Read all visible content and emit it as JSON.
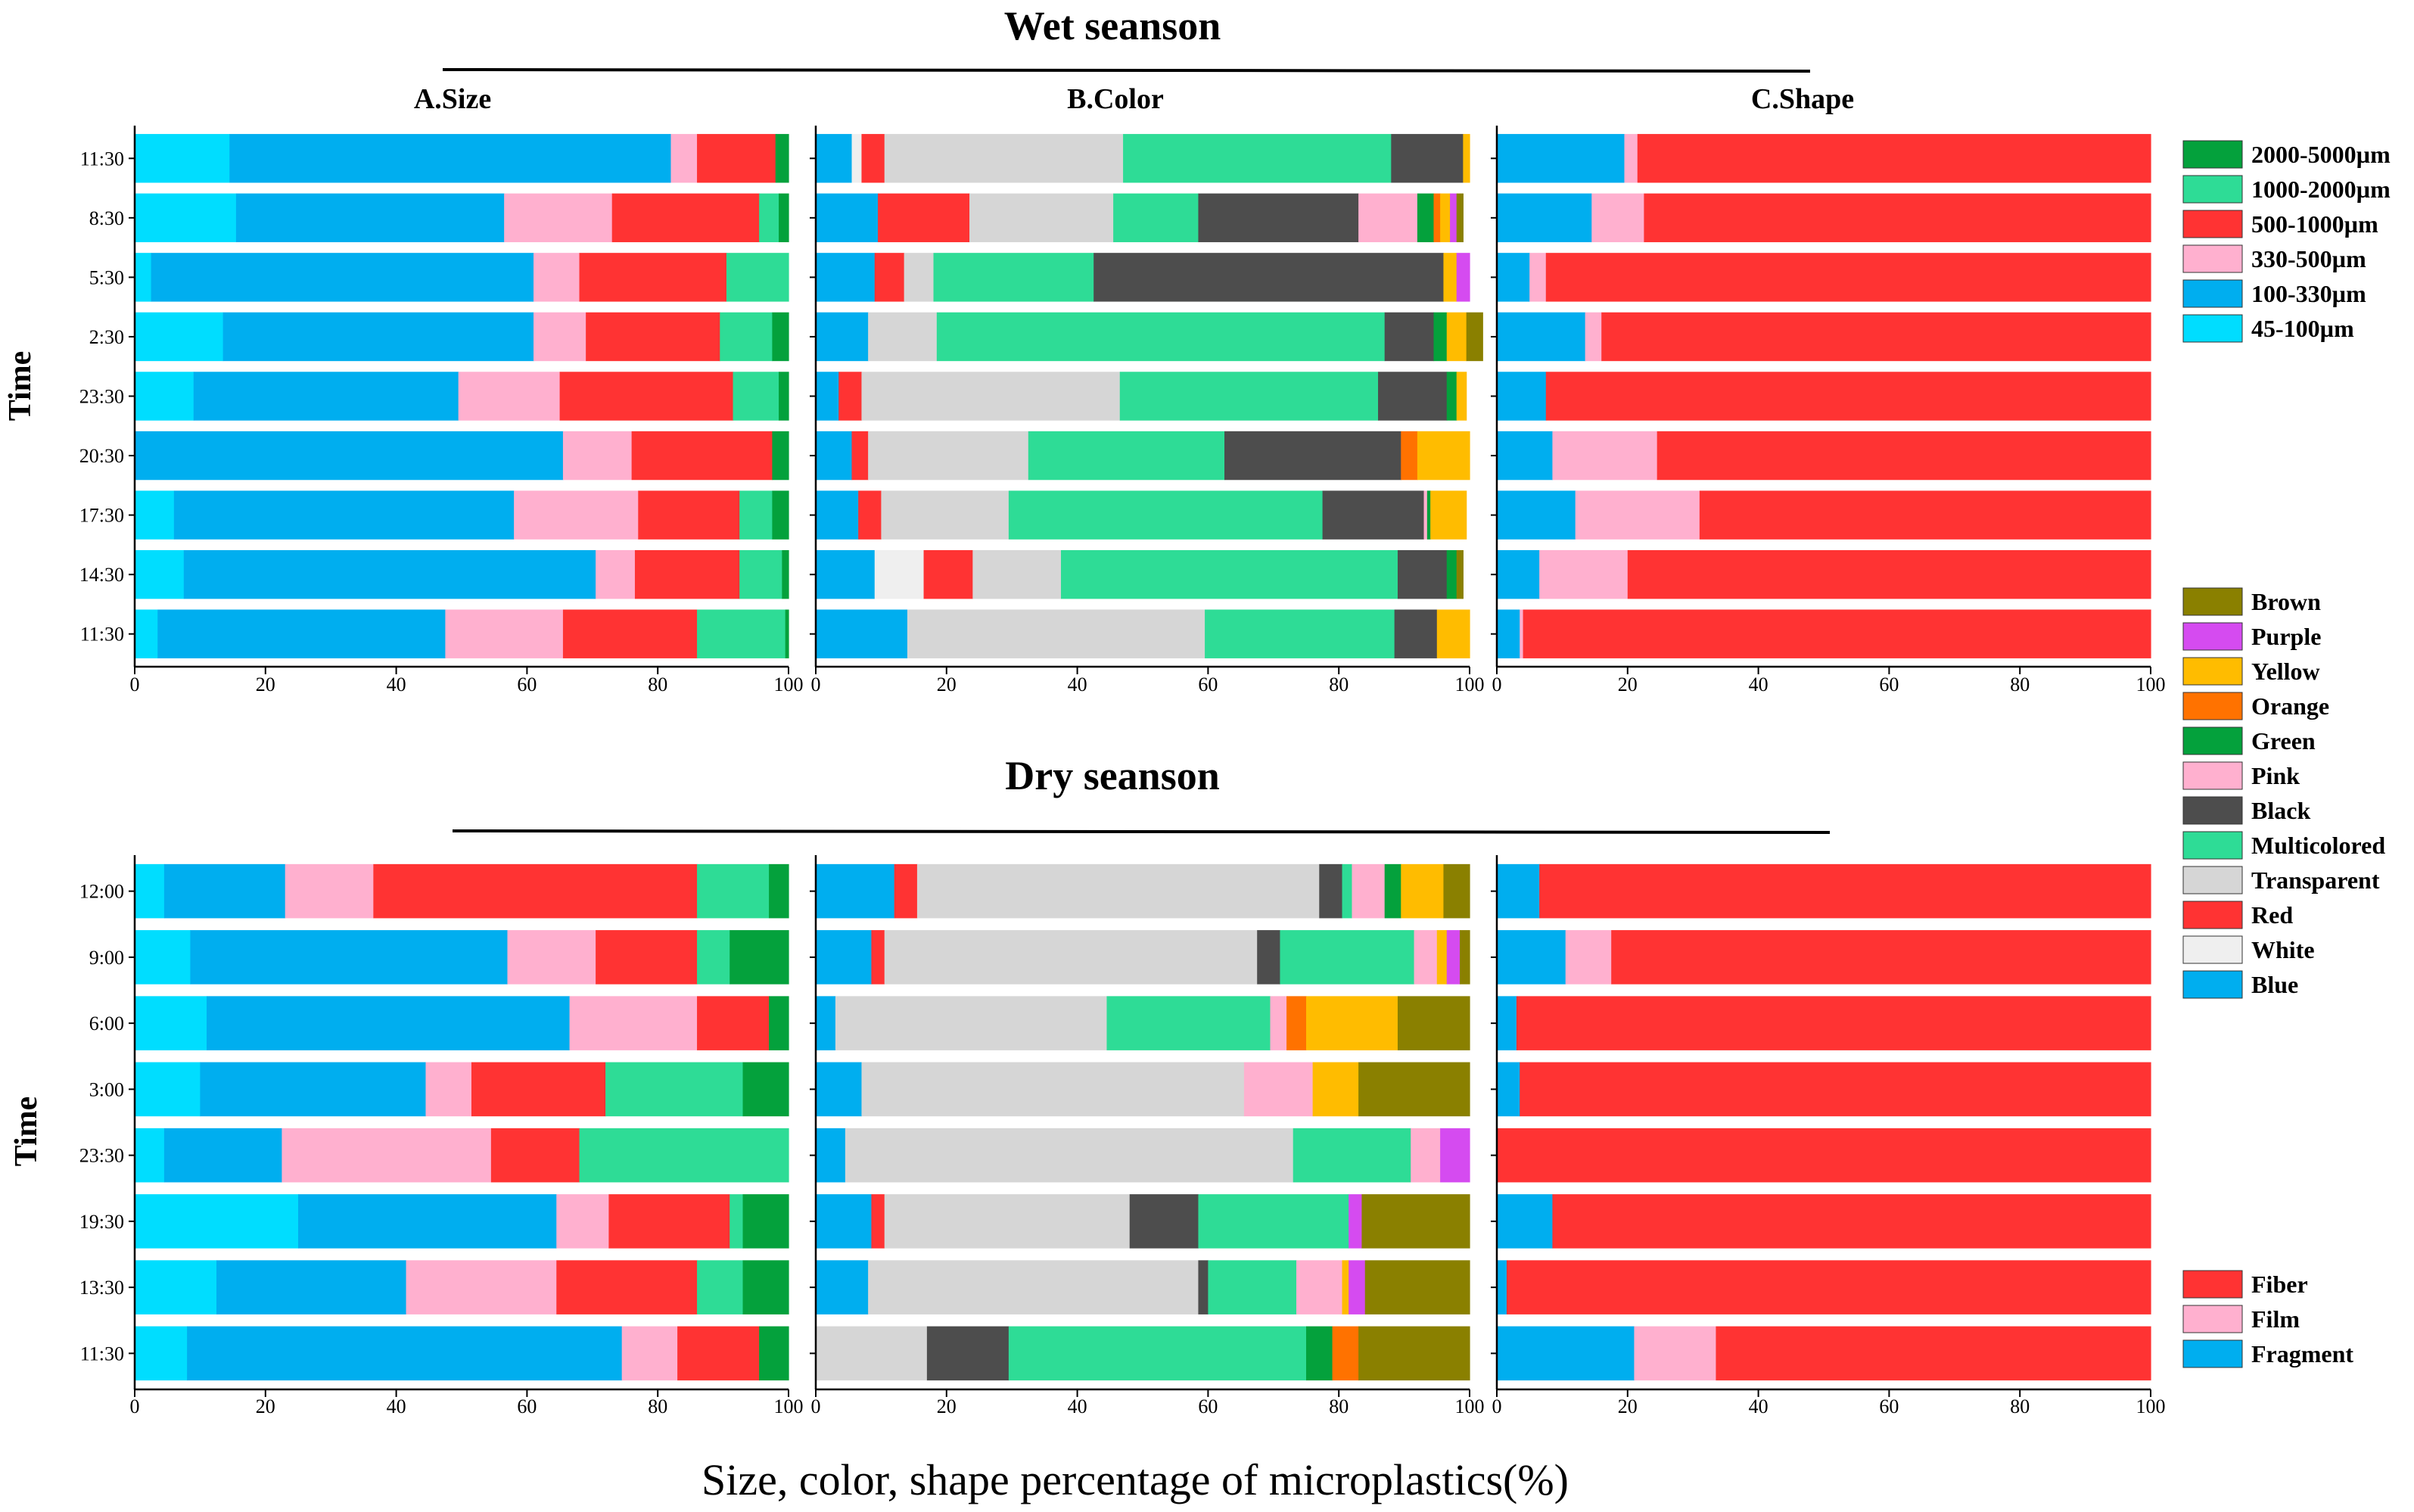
{
  "palette": {
    "2000-5000µm": "#04A13C",
    "1000-2000µm": "#2EDC96",
    "500-1000µm": "#FF3333",
    "330-500µm": "#FFB0CF",
    "100-330µm": "#00AEEF",
    "45-100µm": "#00DDFF",
    "Brown": "#8A8000",
    "Purple": "#D54BF0",
    "Yellow": "#FFBC00",
    "Orange": "#FF7200",
    "Green": "#04A13C",
    "Pink": "#FFB0CF",
    "Black": "#4D4D4D",
    "Multicolored": "#2EDC96",
    "Transparent": "#D6D6D6",
    "Red": "#FF3333",
    "White": "#EFEFEF",
    "Blue": "#00AEEF",
    "Fiber": "#FF3333",
    "Film": "#FFB0CF",
    "Fragment": "#00AEEF"
  },
  "global": {
    "xlabel": "Size, color, shape percentage of microplastics(%)",
    "ylabel": "Time"
  },
  "legends": {
    "size": [
      "2000-5000µm",
      "1000-2000µm",
      "500-1000µm",
      "330-500µm",
      "100-330µm",
      "45-100µm"
    ],
    "color": [
      "Brown",
      "Purple",
      "Yellow",
      "Orange",
      "Green",
      "Pink",
      "Black",
      "Multicolored",
      "Transparent",
      "Red",
      "White",
      "Blue"
    ],
    "shape": [
      "Fiber",
      "Film",
      "Fragment"
    ]
  },
  "chart_data": [
    {
      "type": "bar",
      "orientation": "horizontal-stacked",
      "season": "Wet seanson",
      "title": "A.Size",
      "ylabel": "Time",
      "xlim": [
        0,
        100
      ],
      "xticks": [
        "0",
        "20",
        "40",
        "60",
        "80",
        "100"
      ],
      "categories": [
        "11:30",
        "8:30",
        "5:30",
        "2:30",
        "23:30",
        "20:30",
        "17:30",
        "14:30",
        "11:30"
      ],
      "series": [
        {
          "name": "45-100µm",
          "values": [
            14.5,
            15.5,
            2.5,
            13.5,
            9,
            0,
            6,
            7.5,
            3.5
          ]
        },
        {
          "name": "100-330µm",
          "values": [
            67.5,
            41,
            58.5,
            47.5,
            40.5,
            65.5,
            52,
            63,
            44
          ]
        },
        {
          "name": "330-500µm",
          "values": [
            4,
            16.5,
            7,
            8,
            15.5,
            10.5,
            19,
            6,
            18
          ]
        },
        {
          "name": "500-1000µm",
          "values": [
            12,
            22.5,
            22.5,
            20.5,
            26.5,
            21.5,
            15.5,
            16,
            20.5
          ]
        },
        {
          "name": "1000-2000µm",
          "values": [
            0,
            3,
            9.5,
            8,
            7,
            0,
            5,
            6.5,
            13.5
          ]
        },
        {
          "name": "2000-5000µm",
          "values": [
            2,
            1.5,
            0,
            2.5,
            1.5,
            2.5,
            2.5,
            1,
            0.5
          ]
        }
      ]
    },
    {
      "type": "bar",
      "orientation": "horizontal-stacked",
      "season": "Wet seanson",
      "title": "B.Color",
      "xlim": [
        0,
        100
      ],
      "xticks": [
        "0",
        "20",
        "40",
        "60",
        "80",
        "100"
      ],
      "categories": [
        "11:30",
        "8:30",
        "5:30",
        "2:30",
        "23:30",
        "20:30",
        "17:30",
        "14:30",
        "11:30"
      ],
      "series": [
        {
          "name": "Blue",
          "values": [
            5.5,
            9.5,
            9,
            8,
            3.5,
            5.5,
            6.5,
            9,
            14
          ]
        },
        {
          "name": "White",
          "values": [
            1.5,
            0,
            0,
            0,
            0,
            0,
            0,
            7.5,
            0
          ]
        },
        {
          "name": "Red",
          "values": [
            3.5,
            14,
            4.5,
            0,
            3.5,
            2.5,
            3.5,
            7.5,
            0
          ]
        },
        {
          "name": "Transparent",
          "values": [
            36.5,
            22,
            4.5,
            10.5,
            39.5,
            24.5,
            19.5,
            13.5,
            45.5
          ]
        },
        {
          "name": "Multicolored",
          "values": [
            41,
            13,
            24.5,
            68.5,
            39.5,
            30,
            48,
            51.5,
            29
          ]
        },
        {
          "name": "Black",
          "values": [
            11,
            24.5,
            53.5,
            7.5,
            10.5,
            27,
            15.5,
            7.5,
            6.5
          ]
        },
        {
          "name": "Pink",
          "values": [
            0,
            9,
            0,
            0,
            0,
            0,
            0.5,
            0,
            0
          ]
        },
        {
          "name": "Green",
          "values": [
            0,
            2.5,
            0,
            2,
            1.5,
            0,
            0.5,
            1.5,
            0
          ]
        },
        {
          "name": "Orange",
          "values": [
            0,
            1,
            0,
            0,
            0,
            2.5,
            0,
            0,
            0
          ]
        },
        {
          "name": "Yellow",
          "values": [
            1,
            1.5,
            2,
            3,
            1.5,
            8,
            5.5,
            0,
            5
          ]
        },
        {
          "name": "Purple",
          "values": [
            0,
            1,
            2,
            0,
            0,
            0,
            0,
            0,
            0
          ]
        },
        {
          "name": "Brown",
          "values": [
            0,
            1,
            0,
            2.5,
            0,
            0,
            0,
            1,
            0
          ]
        }
      ]
    },
    {
      "type": "bar",
      "orientation": "horizontal-stacked",
      "season": "Wet seanson",
      "title": "C.Shape",
      "xlim": [
        0,
        100
      ],
      "xticks": [
        "0",
        "20",
        "40",
        "60",
        "80",
        "100"
      ],
      "categories": [
        "11:30",
        "8:30",
        "5:30",
        "2:30",
        "23:30",
        "20:30",
        "17:30",
        "14:30",
        "11:30"
      ],
      "series": [
        {
          "name": "Fragment",
          "values": [
            19.5,
            14.5,
            5,
            13.5,
            7.5,
            8.5,
            12,
            6.5,
            3.5
          ]
        },
        {
          "name": "Film",
          "values": [
            2,
            8,
            2.5,
            2.5,
            0,
            16,
            19,
            13.5,
            0.5
          ]
        },
        {
          "name": "Fiber",
          "values": [
            78.5,
            77.5,
            92.5,
            84,
            92.5,
            75.5,
            69,
            80,
            96
          ]
        }
      ]
    },
    {
      "type": "bar",
      "orientation": "horizontal-stacked",
      "season": "Dry seanson",
      "title": "A.Size",
      "ylabel": "Time",
      "xlim": [
        0,
        100
      ],
      "xticks": [
        "0",
        "20",
        "40",
        "60",
        "80",
        "100"
      ],
      "categories": [
        "12:00",
        "9:00",
        "6:00",
        "3:00",
        "23:30",
        "19:30",
        "13:30",
        "11:30"
      ],
      "series": [
        {
          "name": "45-100µm",
          "values": [
            4.5,
            8.5,
            11,
            10,
            4.5,
            25,
            12.5,
            8
          ]
        },
        {
          "name": "100-330µm",
          "values": [
            18.5,
            48.5,
            55.5,
            34.5,
            18,
            39.5,
            29,
            66.5
          ]
        },
        {
          "name": "330-500µm",
          "values": [
            13.5,
            13.5,
            19.5,
            7,
            32,
            8,
            23,
            8.5
          ]
        },
        {
          "name": "500-1000µm",
          "values": [
            49.5,
            15.5,
            11,
            20.5,
            13.5,
            18.5,
            21.5,
            12.5
          ]
        },
        {
          "name": "1000-2000µm",
          "values": [
            11,
            5,
            0,
            21,
            32,
            2,
            7,
            0
          ]
        },
        {
          "name": "2000-5000µm",
          "values": [
            3,
            9,
            3,
            7,
            0,
            7,
            7,
            4.5
          ]
        }
      ]
    },
    {
      "type": "bar",
      "orientation": "horizontal-stacked",
      "season": "Dry seanson",
      "title": "B.Color",
      "xlim": [
        0,
        100
      ],
      "xticks": [
        "0",
        "20",
        "40",
        "60",
        "80",
        "100"
      ],
      "categories": [
        "12:00",
        "9:00",
        "6:00",
        "3:00",
        "23:30",
        "19:30",
        "13:30",
        "11:30"
      ],
      "series": [
        {
          "name": "Blue",
          "values": [
            12,
            8.5,
            3,
            7,
            4.5,
            8.5,
            8,
            0
          ]
        },
        {
          "name": "Red",
          "values": [
            3.5,
            2,
            0,
            0,
            0,
            2,
            0,
            0
          ]
        },
        {
          "name": "Transparent",
          "values": [
            61.5,
            57,
            41.5,
            58.5,
            68.5,
            37.5,
            50.5,
            17
          ]
        },
        {
          "name": "Black",
          "values": [
            3.5,
            3.5,
            0,
            0,
            0,
            10.5,
            1.5,
            12.5
          ]
        },
        {
          "name": "Multicolored",
          "values": [
            1.5,
            20.5,
            25,
            0,
            18,
            23,
            13.5,
            45.5
          ]
        },
        {
          "name": "Pink",
          "values": [
            5,
            3.5,
            2.5,
            10.5,
            4.5,
            0,
            7,
            0
          ]
        },
        {
          "name": "Green",
          "values": [
            2.5,
            0,
            0,
            0,
            0,
            0,
            0,
            4
          ]
        },
        {
          "name": "Orange",
          "values": [
            0,
            0,
            3,
            0,
            0,
            0,
            0,
            4
          ]
        },
        {
          "name": "Yellow",
          "values": [
            6.5,
            1.5,
            14,
            7,
            0,
            0,
            1,
            0
          ]
        },
        {
          "name": "Purple",
          "values": [
            0,
            2,
            0,
            0,
            4.5,
            2,
            2.5,
            0
          ]
        },
        {
          "name": "Brown",
          "values": [
            4,
            1.5,
            11,
            17,
            0,
            16.5,
            16,
            17
          ]
        }
      ]
    },
    {
      "type": "bar",
      "orientation": "horizontal-stacked",
      "season": "Dry seanson",
      "title": "C.Shape",
      "xlim": [
        0,
        100
      ],
      "xticks": [
        "0",
        "20",
        "40",
        "60",
        "80",
        "100"
      ],
      "categories": [
        "12:00",
        "9:00",
        "6:00",
        "3:00",
        "23:30",
        "19:30",
        "13:30",
        "11:30"
      ],
      "series": [
        {
          "name": "Fragment",
          "values": [
            6.5,
            10.5,
            3,
            3.5,
            0,
            8.5,
            1.5,
            21
          ]
        },
        {
          "name": "Film",
          "values": [
            0,
            7,
            0,
            0,
            0,
            0,
            0,
            12.5
          ]
        },
        {
          "name": "Fiber",
          "values": [
            93.5,
            82.5,
            97,
            96.5,
            100,
            91.5,
            98.5,
            66.5
          ]
        }
      ]
    }
  ]
}
